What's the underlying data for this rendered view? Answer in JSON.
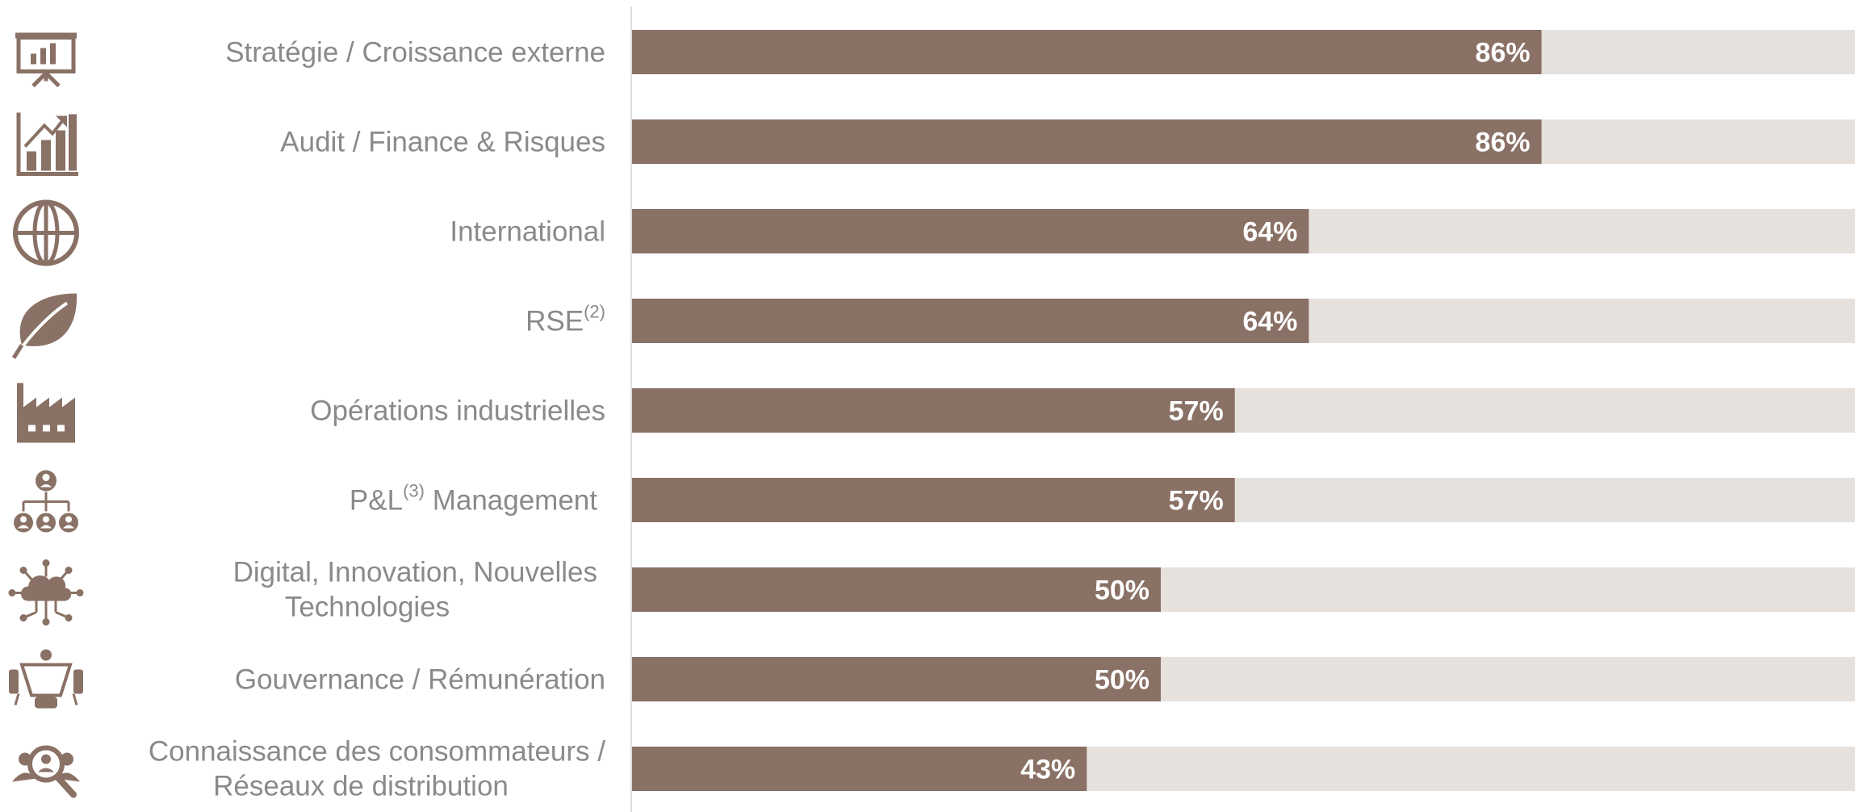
{
  "colors": {
    "bar": "#8a7165",
    "track": "#e7e1de",
    "label": "#8a8a8a",
    "value_text": "#ffffff",
    "icon": "#8a7165",
    "axis": "#dddddd"
  },
  "chart_data": {
    "type": "bar",
    "orientation": "horizontal",
    "xlim": [
      0,
      100
    ],
    "unit": "%",
    "grid": false,
    "legend": "none",
    "categories": [
      {
        "label": "Stratégie / Croissance externe",
        "icon": "presentation-chart-icon"
      },
      {
        "label": "Audit / Finance & Risques",
        "icon": "growth-chart-icon"
      },
      {
        "label": "International",
        "icon": "globe-icon"
      },
      {
        "label": "RSE",
        "sup": "(2)",
        "icon": "leaf-icon"
      },
      {
        "label": "Opérations industrielles",
        "icon": "factory-icon"
      },
      {
        "label": "P&L",
        "sup": "(3)",
        "label_after": " Management",
        "icon": "org-chart-icon"
      },
      {
        "label": "Digital, Innovation, Nouvelles",
        "label_line2": "Technologies",
        "icon": "cloud-network-icon"
      },
      {
        "label": "Gouvernance / Rémunération",
        "icon": "meeting-table-icon"
      },
      {
        "label": "Connaissance des consommateurs /",
        "label_line2": "Réseaux de distribution",
        "icon": "consumer-search-icon"
      }
    ],
    "values": [
      86,
      86,
      64,
      64,
      57,
      57,
      50,
      50,
      43
    ],
    "value_labels": [
      "86%",
      "86%",
      "64%",
      "64%",
      "57%",
      "57%",
      "50%",
      "50%",
      "43%"
    ]
  }
}
